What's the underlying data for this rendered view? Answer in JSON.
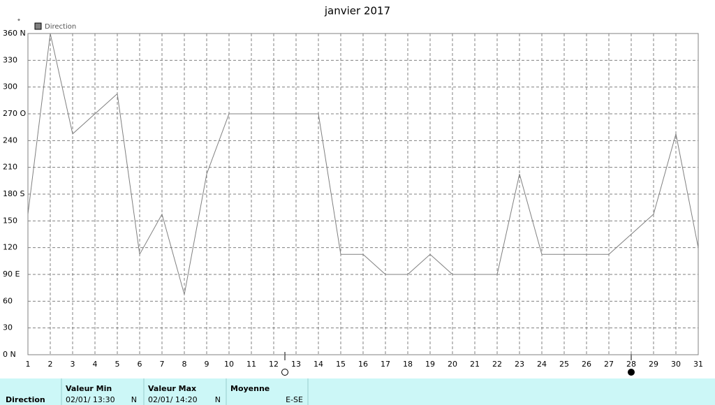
{
  "chart_data": {
    "type": "line",
    "title": "janvier 2017",
    "y_unit": "°",
    "x": [
      1,
      2,
      3,
      4,
      5,
      6,
      7,
      8,
      9,
      10,
      11,
      12,
      13,
      14,
      15,
      16,
      17,
      18,
      19,
      20,
      21,
      22,
      23,
      24,
      25,
      26,
      27,
      28,
      29,
      30,
      31
    ],
    "series": [
      {
        "name": "Direction",
        "color": "#808080",
        "values": [
          157.5,
          360,
          247.5,
          270,
          292.5,
          112.5,
          157.5,
          67.5,
          202.5,
          270,
          270,
          270,
          270,
          270,
          112.5,
          112.5,
          90,
          90,
          112.5,
          90,
          90,
          90,
          202.5,
          112.5,
          112.5,
          112.5,
          112.5,
          135,
          157.5,
          247.5,
          120
        ]
      }
    ],
    "xlim": [
      1,
      31
    ],
    "xticks": [
      1,
      2,
      3,
      4,
      5,
      6,
      7,
      8,
      9,
      10,
      11,
      12,
      13,
      14,
      15,
      16,
      17,
      18,
      19,
      20,
      21,
      22,
      23,
      24,
      25,
      26,
      27,
      28,
      29,
      30,
      31
    ],
    "ylim": [
      0,
      360
    ],
    "yticks": [
      {
        "value": 0,
        "label": "0 N"
      },
      30,
      60,
      {
        "value": 90,
        "label": "90  E"
      },
      120,
      150,
      {
        "value": 180,
        "label": "180 S"
      },
      210,
      240,
      {
        "value": 270,
        "label": "270 O"
      },
      300,
      330,
      {
        "value": 360,
        "label": "360 N"
      }
    ],
    "grid": true,
    "legend": "top-left"
  },
  "table": {
    "row_label": "Direction",
    "columns": [
      {
        "header": "Valeur Min",
        "date": "02/01/  13:30",
        "dir": "N"
      },
      {
        "header": "Valeur Max",
        "date": "02/01/  14:20",
        "dir": "N"
      },
      {
        "header": "Moyenne",
        "dir": "E-SE"
      }
    ]
  }
}
